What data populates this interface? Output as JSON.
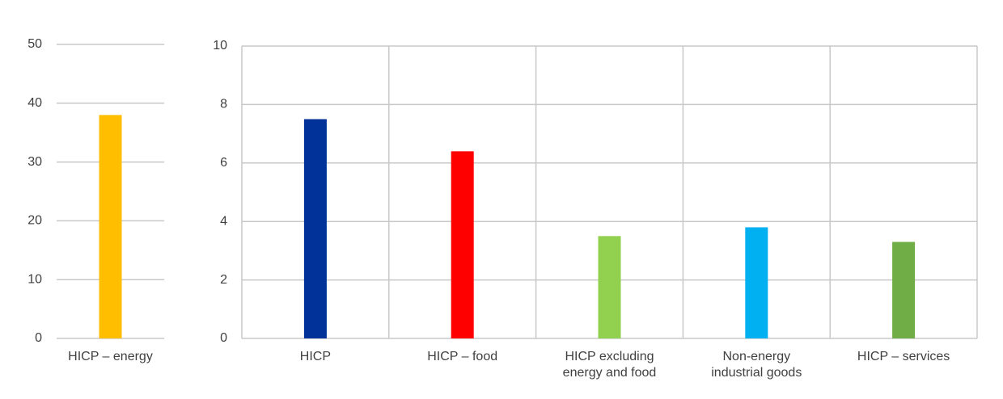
{
  "chart_data": [
    {
      "type": "bar",
      "categories": [
        "HICP – energy"
      ],
      "values": [
        38
      ],
      "colors": [
        "#ffbf00"
      ],
      "ylim": [
        0,
        50
      ],
      "yticks": [
        0,
        10,
        20,
        30,
        40,
        50
      ],
      "grid": true
    },
    {
      "type": "bar",
      "categories": [
        "HICP",
        "HICP – food",
        "HICP excluding energy and food",
        "Non-energy industrial goods",
        "HICP – services"
      ],
      "values": [
        7.5,
        6.4,
        3.5,
        3.8,
        3.3
      ],
      "colors": [
        "#003299",
        "#ff0000",
        "#92d050",
        "#00b0f0",
        "#70ad47"
      ],
      "ylim": [
        0,
        10
      ],
      "yticks": [
        0,
        2,
        4,
        6,
        8,
        10
      ],
      "grid": true,
      "xgrid": true
    }
  ]
}
